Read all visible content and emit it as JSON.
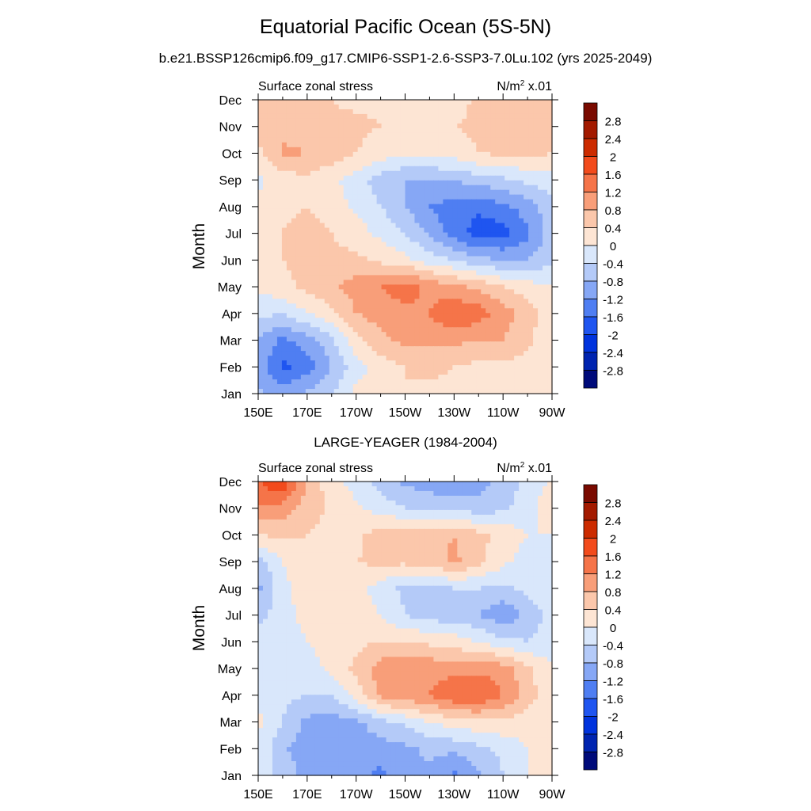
{
  "title": "Equatorial Pacific Ocean (5S-5N)",
  "subtitle": "b.e21.BSSP126cmip6.f09_g17.CMIP6-SSP1-2.6-SSP3-7.0Lu.102 (yrs 2025-2049)",
  "colors": {
    "levels": [
      -2.8,
      -2.4,
      -2.0,
      -1.6,
      -1.2,
      -0.8,
      -0.4,
      0.0,
      0.4,
      0.8,
      1.2,
      1.6,
      2.0,
      2.4,
      2.8
    ],
    "bins": [
      "#000b7a",
      "#0024b0",
      "#0033dd",
      "#1f55f0",
      "#4f7ef2",
      "#86a7f5",
      "#b4caf8",
      "#d9e7fb",
      "#fde5d4",
      "#fbc7ab",
      "#f89e79",
      "#f57449",
      "#f24b1c",
      "#cc2b00",
      "#a31a00",
      "#7a0a00"
    ]
  },
  "chart_data": [
    {
      "type": "heatmap",
      "title": "",
      "left_label": "Surface zonal stress",
      "units_label": "N/m",
      "units_superscript": "2",
      "units_scale": " x.01",
      "ylabel": "Month",
      "xlabel": "",
      "x": [
        "150E",
        "160E",
        "170E",
        "180",
        "170W",
        "160W",
        "150W",
        "140W",
        "130W",
        "120W",
        "110W",
        "100W",
        "90W"
      ],
      "x_tick_labels": [
        "150E",
        "170E",
        "170W",
        "150W",
        "130W",
        "110W",
        "90W"
      ],
      "y": [
        "Jan",
        "Feb",
        "Mar",
        "Apr",
        "May",
        "Jun",
        "Jul",
        "Aug",
        "Sep",
        "Oct",
        "Nov",
        "Dec"
      ],
      "colorbar_labels": [
        "2.8",
        "2.4",
        "2",
        "1.6",
        "1.2",
        "0.8",
        "0.4",
        "0",
        "-0.4",
        "-0.8",
        "-1.2",
        "-1.6",
        "-2",
        "-2.4",
        "-2.8"
      ],
      "values": [
        [
          -0.7,
          -1.0,
          -0.7,
          -0.4,
          0.1,
          0.3,
          0.4,
          0.3,
          0.3,
          0.3,
          0.2,
          0.2,
          0.0
        ],
        [
          -1.0,
          -1.7,
          -1.4,
          -0.8,
          -0.2,
          0.2,
          0.4,
          0.5,
          0.4,
          0.3,
          0.3,
          0.2,
          0.0
        ],
        [
          -0.8,
          -1.3,
          -1.0,
          -0.5,
          0.3,
          0.7,
          0.9,
          0.9,
          0.9,
          0.8,
          0.8,
          0.5,
          0.1
        ],
        [
          -0.3,
          -0.4,
          0.0,
          0.3,
          0.8,
          1.0,
          1.1,
          1.2,
          1.6,
          1.4,
          1.0,
          0.6,
          0.1
        ],
        [
          0.1,
          0.3,
          0.5,
          0.7,
          1.0,
          1.2,
          1.4,
          1.1,
          0.9,
          0.7,
          0.4,
          0.2,
          0.0
        ],
        [
          0.1,
          0.4,
          0.5,
          0.5,
          0.5,
          0.3,
          0.1,
          -0.2,
          -0.4,
          -0.7,
          -0.8,
          -0.8,
          -0.5
        ],
        [
          0.1,
          0.4,
          0.6,
          0.4,
          0.2,
          -0.1,
          -0.4,
          -0.9,
          -1.4,
          -1.8,
          -1.8,
          -1.3,
          -0.6
        ],
        [
          0.1,
          0.3,
          0.4,
          0.2,
          -0.1,
          -0.4,
          -0.8,
          -1.2,
          -1.4,
          -1.5,
          -1.3,
          -1.0,
          -0.5
        ],
        [
          -0.1,
          0.2,
          0.3,
          0.1,
          -0.2,
          -0.6,
          -0.8,
          -0.8,
          -0.8,
          -0.6,
          -0.5,
          -0.3,
          -0.2
        ],
        [
          0.3,
          0.9,
          0.8,
          0.6,
          0.4,
          0.2,
          0.1,
          0.1,
          0.2,
          0.4,
          0.5,
          0.5,
          0.4
        ],
        [
          0.5,
          0.6,
          0.6,
          0.5,
          0.5,
          0.4,
          0.4,
          0.3,
          0.4,
          0.5,
          0.5,
          0.5,
          0.5
        ],
        [
          0.4,
          0.4,
          0.4,
          0.4,
          0.3,
          0.3,
          0.2,
          0.1,
          0.2,
          0.5,
          0.6,
          0.6,
          0.6
        ]
      ]
    },
    {
      "type": "heatmap",
      "title": "LARGE-YEAGER (1984-2004)",
      "left_label": "Surface zonal stress",
      "units_label": "N/m",
      "units_superscript": "2",
      "units_scale": " x.01",
      "ylabel": "Month",
      "xlabel": "",
      "x": [
        "150E",
        "160E",
        "170E",
        "180",
        "170W",
        "160W",
        "150W",
        "140W",
        "130W",
        "120W",
        "110W",
        "100W",
        "90W"
      ],
      "x_tick_labels": [
        "150E",
        "170E",
        "170W",
        "150W",
        "130W",
        "110W",
        "90W"
      ],
      "y": [
        "Jan",
        "Feb",
        "Mar",
        "Apr",
        "May",
        "Jun",
        "Jul",
        "Aug",
        "Sep",
        "Oct",
        "Nov",
        "Dec"
      ],
      "colorbar_labels": [
        "2.8",
        "2.4",
        "2",
        "1.6",
        "1.2",
        "0.8",
        "0.4",
        "0",
        "-0.4",
        "-0.8",
        "-1.2",
        "-1.6",
        "-2",
        "-2.4",
        "-2.8"
      ],
      "values": [
        [
          -0.2,
          -0.6,
          -0.9,
          -1.0,
          -1.0,
          -1.3,
          -1.0,
          -0.9,
          -1.3,
          -0.9,
          -0.4,
          0.0,
          0.2
        ],
        [
          -0.1,
          -0.7,
          -1.1,
          -1.2,
          -1.1,
          -1.0,
          -0.9,
          -0.7,
          -0.7,
          -0.5,
          -0.3,
          0.0,
          0.2
        ],
        [
          0.1,
          -0.4,
          -0.9,
          -1.0,
          -0.9,
          -0.5,
          -0.3,
          0.0,
          0.2,
          0.3,
          0.3,
          0.2,
          0.1
        ],
        [
          -0.1,
          -0.3,
          -0.4,
          -0.4,
          0.2,
          0.9,
          1.1,
          1.2,
          1.6,
          1.6,
          1.2,
          0.6,
          0.1
        ],
        [
          -0.3,
          -0.4,
          -0.2,
          0.1,
          0.5,
          1.0,
          1.2,
          1.1,
          1.0,
          1.1,
          1.0,
          0.5,
          0.0
        ],
        [
          -0.2,
          -0.3,
          0.0,
          0.2,
          0.3,
          0.4,
          0.4,
          0.3,
          0.2,
          0.0,
          -0.3,
          -0.4,
          -0.2
        ],
        [
          -0.5,
          -0.2,
          0.2,
          0.3,
          0.2,
          0.0,
          -0.4,
          -0.6,
          -0.6,
          -0.8,
          -1.1,
          -0.7,
          -0.2
        ],
        [
          -0.9,
          -0.1,
          0.2,
          0.3,
          0.2,
          -0.2,
          -0.5,
          -0.6,
          -0.4,
          -0.4,
          -0.5,
          -0.3,
          -0.1
        ],
        [
          -0.6,
          0.0,
          0.2,
          0.3,
          0.4,
          0.5,
          0.5,
          0.6,
          0.9,
          0.5,
          0.1,
          -0.2,
          -0.1
        ],
        [
          0.4,
          0.5,
          0.4,
          0.3,
          0.3,
          0.6,
          0.7,
          0.6,
          0.8,
          0.5,
          0.3,
          0.0,
          0.0
        ],
        [
          1.2,
          1.0,
          0.6,
          0.3,
          0.1,
          -0.2,
          -0.4,
          -0.5,
          -0.5,
          -0.6,
          -0.5,
          -0.2,
          0.3
        ],
        [
          1.6,
          2.0,
          0.7,
          0.2,
          -0.2,
          -0.6,
          -0.9,
          -1.0,
          -1.2,
          -1.0,
          -0.6,
          -0.3,
          0.1
        ]
      ]
    }
  ]
}
